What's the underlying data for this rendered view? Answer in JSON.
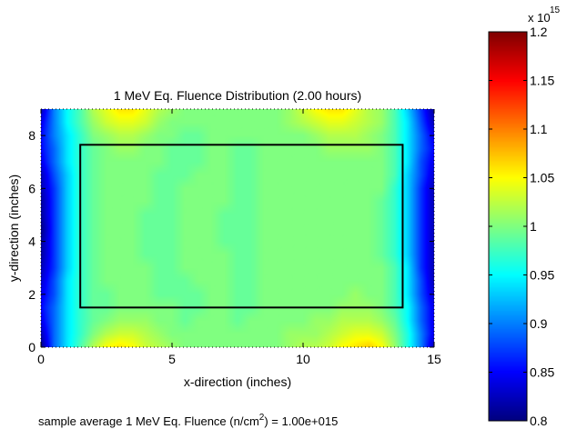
{
  "chart_data": {
    "type": "heatmap",
    "title": "1 MeV Eq. Fluence Distribution (2.00 hours)",
    "xlabel": "x-direction (inches)",
    "ylabel": "y-direction (inches)",
    "xlim": [
      0,
      15
    ],
    "ylim": [
      0,
      9
    ],
    "xticks": [
      0,
      5,
      10,
      15
    ],
    "yticks": [
      0,
      2,
      4,
      6,
      8
    ],
    "x": [
      0,
      0.5,
      1,
      1.5,
      2,
      2.5,
      3,
      3.5,
      4,
      4.5,
      5,
      5.5,
      6,
      6.5,
      7,
      7.5,
      8,
      8.5,
      9,
      9.5,
      10,
      10.5,
      11,
      11.5,
      12,
      12.5,
      13,
      13.5,
      14,
      14.5,
      15
    ],
    "y": [
      0,
      0.5,
      1,
      1.5,
      2,
      2.5,
      3,
      3.5,
      4,
      4.5,
      5,
      5.5,
      6,
      6.5,
      7,
      7.5,
      8,
      8.5,
      9
    ],
    "z_scale_label": "x 10",
    "z_scale_exponent": "15",
    "z_min": 0.8,
    "z_max": 1.2,
    "colorbar_ticks": [
      "1.2",
      "1.15",
      "1.1",
      "1.05",
      "1",
      "0.95",
      "0.9",
      "0.85",
      "0.8"
    ],
    "colormap": "jet",
    "rectangle": {
      "x": [
        1.5,
        13.8
      ],
      "y": [
        1.5,
        7.65
      ]
    },
    "grid": false,
    "z": [
      [
        0.8,
        0.89,
        0.94,
        0.98,
        1.02,
        1.05,
        1.06,
        1.05,
        1.03,
        1.02,
        1.01,
        1.0,
        1.0,
        1.0,
        1.0,
        1.0,
        1.0,
        1.0,
        1.0,
        1.01,
        1.02,
        1.02,
        1.03,
        1.05,
        1.06,
        1.07,
        1.05,
        1.01,
        0.96,
        0.9,
        0.82
      ],
      [
        0.82,
        0.89,
        0.94,
        0.97,
        1.0,
        1.02,
        1.03,
        1.03,
        1.02,
        1.01,
        1.0,
        1.0,
        1.0,
        1.0,
        1.0,
        1.0,
        1.0,
        1.0,
        1.0,
        1.01,
        1.01,
        1.01,
        1.02,
        1.03,
        1.04,
        1.04,
        1.03,
        1.0,
        0.96,
        0.9,
        0.84
      ],
      [
        0.84,
        0.89,
        0.94,
        0.97,
        0.99,
        1.0,
        1.01,
        1.01,
        1.01,
        1.0,
        1.0,
        0.99,
        1.0,
        1.0,
        1.0,
        0.99,
        1.0,
        1.0,
        1.0,
        1.0,
        1.0,
        1.01,
        1.01,
        1.02,
        1.02,
        1.02,
        1.01,
        0.99,
        0.95,
        0.89,
        0.84
      ],
      [
        0.85,
        0.89,
        0.94,
        0.97,
        0.99,
        0.99,
        1.0,
        1.0,
        1.0,
        1.0,
        1.0,
        0.99,
        0.99,
        1.0,
        1.0,
        0.99,
        0.99,
        1.0,
        1.0,
        1.0,
        1.0,
        1.0,
        1.0,
        1.01,
        1.01,
        1.01,
        1.0,
        0.98,
        0.95,
        0.89,
        0.84
      ],
      [
        0.84,
        0.88,
        0.94,
        0.97,
        0.99,
        0.99,
        1.0,
        1.0,
        1.0,
        0.99,
        0.99,
        0.99,
        0.99,
        1.0,
        1.0,
        0.99,
        0.99,
        1.0,
        1.0,
        1.0,
        1.0,
        1.0,
        1.0,
        1.0,
        1.01,
        1.0,
        1.0,
        0.98,
        0.94,
        0.88,
        0.83
      ],
      [
        0.83,
        0.88,
        0.94,
        0.97,
        0.99,
        1.0,
        1.0,
        1.0,
        1.0,
        0.99,
        0.99,
        0.99,
        1.0,
        1.0,
        1.0,
        0.99,
        0.99,
        1.0,
        1.0,
        1.0,
        1.0,
        1.0,
        1.0,
        1.0,
        1.0,
        1.0,
        1.0,
        0.98,
        0.94,
        0.88,
        0.82
      ],
      [
        0.82,
        0.87,
        0.93,
        0.97,
        0.99,
        1.0,
        1.0,
        1.0,
        1.0,
        0.99,
        0.99,
        1.0,
        1.0,
        1.0,
        1.0,
        0.99,
        0.99,
        1.0,
        1.0,
        1.0,
        1.0,
        1.0,
        1.0,
        1.0,
        1.0,
        1.0,
        1.0,
        0.98,
        0.94,
        0.87,
        0.82
      ],
      [
        0.81,
        0.87,
        0.93,
        0.97,
        0.99,
        1.0,
        1.0,
        1.0,
        0.99,
        0.99,
        0.99,
        1.0,
        1.0,
        1.0,
        1.0,
        0.99,
        0.99,
        1.0,
        1.0,
        1.0,
        1.0,
        1.0,
        1.0,
        1.0,
        1.0,
        1.0,
        0.99,
        0.97,
        0.93,
        0.87,
        0.82
      ],
      [
        0.81,
        0.87,
        0.93,
        0.97,
        0.99,
        1.0,
        1.0,
        1.0,
        0.99,
        0.99,
        0.99,
        1.0,
        1.0,
        1.0,
        0.99,
        0.99,
        0.99,
        1.0,
        1.0,
        1.0,
        1.0,
        1.0,
        1.0,
        1.0,
        1.0,
        1.0,
        0.99,
        0.97,
        0.93,
        0.87,
        0.82
      ],
      [
        0.8,
        0.87,
        0.93,
        0.97,
        0.99,
        1.0,
        1.0,
        1.0,
        0.99,
        0.99,
        0.99,
        1.0,
        1.0,
        1.0,
        0.99,
        0.99,
        0.99,
        1.0,
        1.0,
        1.0,
        1.0,
        1.0,
        1.0,
        1.0,
        1.0,
        1.0,
        0.99,
        0.97,
        0.93,
        0.87,
        0.82
      ],
      [
        0.81,
        0.87,
        0.93,
        0.97,
        0.99,
        1.0,
        1.0,
        1.0,
        0.99,
        0.99,
        0.99,
        1.0,
        1.0,
        1.0,
        0.99,
        0.99,
        0.99,
        1.0,
        1.0,
        1.0,
        1.0,
        1.0,
        1.0,
        1.0,
        1.0,
        1.0,
        0.99,
        0.97,
        0.93,
        0.87,
        0.82
      ],
      [
        0.81,
        0.87,
        0.93,
        0.97,
        0.99,
        1.0,
        1.0,
        1.0,
        1.0,
        0.99,
        0.99,
        1.0,
        1.0,
        1.0,
        1.0,
        0.99,
        0.99,
        1.0,
        1.0,
        1.0,
        1.0,
        1.0,
        1.0,
        1.0,
        1.0,
        1.0,
        0.99,
        0.97,
        0.93,
        0.87,
        0.82
      ],
      [
        0.82,
        0.87,
        0.93,
        0.97,
        0.99,
        1.0,
        1.0,
        1.0,
        1.0,
        0.99,
        0.99,
        1.0,
        1.0,
        1.0,
        1.0,
        0.99,
        0.99,
        1.0,
        1.0,
        1.0,
        1.0,
        1.0,
        1.0,
        1.0,
        1.0,
        1.0,
        1.0,
        0.97,
        0.93,
        0.87,
        0.82
      ],
      [
        0.82,
        0.88,
        0.93,
        0.97,
        0.99,
        1.0,
        1.0,
        1.0,
        1.0,
        0.99,
        0.99,
        0.99,
        1.0,
        1.0,
        1.0,
        0.99,
        0.99,
        1.0,
        1.0,
        1.0,
        1.0,
        1.0,
        1.0,
        1.0,
        1.0,
        1.0,
        1.0,
        0.98,
        0.93,
        0.88,
        0.83
      ],
      [
        0.84,
        0.89,
        0.94,
        0.97,
        0.99,
        1.0,
        1.0,
        1.0,
        1.0,
        1.0,
        0.99,
        0.99,
        0.99,
        1.0,
        1.0,
        0.99,
        0.99,
        1.0,
        1.0,
        1.0,
        1.0,
        1.0,
        1.0,
        1.0,
        1.0,
        1.0,
        1.0,
        0.98,
        0.94,
        0.88,
        0.84
      ],
      [
        0.85,
        0.89,
        0.94,
        0.97,
        0.99,
        1.0,
        1.01,
        1.01,
        1.0,
        1.0,
        0.99,
        0.99,
        0.99,
        1.0,
        1.0,
        0.99,
        0.99,
        1.0,
        1.0,
        1.0,
        1.0,
        1.0,
        1.01,
        1.01,
        1.01,
        1.01,
        1.0,
        0.98,
        0.94,
        0.89,
        0.85
      ],
      [
        0.85,
        0.9,
        0.94,
        0.97,
        1.0,
        1.01,
        1.02,
        1.02,
        1.01,
        1.0,
        1.0,
        0.99,
        0.99,
        1.0,
        1.0,
        1.0,
        1.0,
        1.0,
        1.0,
        1.0,
        1.0,
        1.01,
        1.02,
        1.02,
        1.02,
        1.01,
        1.0,
        0.98,
        0.94,
        0.89,
        0.84
      ],
      [
        0.84,
        0.9,
        0.95,
        0.98,
        1.01,
        1.03,
        1.04,
        1.04,
        1.03,
        1.01,
        1.0,
        1.0,
        1.0,
        1.0,
        1.0,
        1.0,
        1.0,
        1.0,
        1.0,
        1.01,
        1.02,
        1.03,
        1.04,
        1.04,
        1.03,
        1.02,
        1.01,
        0.98,
        0.94,
        0.88,
        0.82
      ],
      [
        0.82,
        0.9,
        0.95,
        0.98,
        1.02,
        1.04,
        1.06,
        1.06,
        1.04,
        1.02,
        1.01,
        1.0,
        1.0,
        1.0,
        1.0,
        1.0,
        1.0,
        1.0,
        1.0,
        1.01,
        1.03,
        1.05,
        1.06,
        1.06,
        1.04,
        1.02,
        1.01,
        0.98,
        0.93,
        0.87,
        0.81
      ]
    ]
  },
  "footer_text": {
    "pre": "sample average 1 MeV Eq. Fluence (n/cm",
    "sup": "2",
    "post": ") = 1.00e+015"
  }
}
